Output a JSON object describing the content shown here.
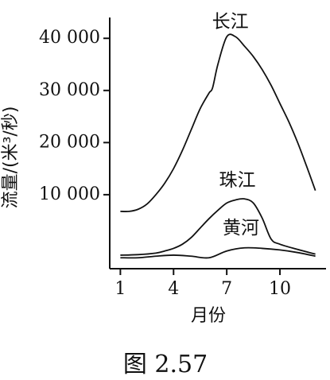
{
  "caption": "图 2.57",
  "chart_data": {
    "type": "line",
    "xlabel": "月份",
    "ylabel": "流量/(米³/秒)",
    "xlim": [
      0.4,
      12.6
    ],
    "ylim": [
      -4200,
      44000
    ],
    "x_ticks": [
      1,
      4,
      7,
      10
    ],
    "y_ticks": [
      10000,
      20000,
      30000,
      40000
    ],
    "y_tick_labels": [
      "10 000",
      "20 000",
      "30 000",
      "40 000"
    ],
    "grid": false,
    "series": [
      {
        "name": "长江",
        "x": [
          1,
          1.5,
          2,
          2.5,
          3,
          3.5,
          4,
          4.5,
          5,
          5.5,
          6,
          6.2,
          6.5,
          7,
          7.5,
          8,
          8.5,
          9,
          9.5,
          10,
          10.5,
          11,
          11.5,
          12
        ],
        "y": [
          6800,
          6800,
          7200,
          8200,
          10000,
          12200,
          15000,
          18500,
          22500,
          26500,
          29500,
          30500,
          35000,
          40300,
          40300,
          38500,
          36500,
          34000,
          31000,
          27500,
          24000,
          20000,
          15500,
          10800
        ]
      },
      {
        "name": "珠江",
        "x": [
          1,
          2,
          3,
          3.5,
          4,
          4.5,
          5,
          5.5,
          6,
          6.5,
          7,
          7.5,
          8,
          8.5,
          9,
          9.5,
          10,
          11,
          12
        ],
        "y": [
          -1600,
          -1500,
          -1200,
          -800,
          -300,
          500,
          1800,
          3600,
          5400,
          7000,
          8400,
          9000,
          9200,
          8400,
          5500,
          1500,
          500,
          -500,
          -1400
        ]
      },
      {
        "name": "黄河",
        "x": [
          1,
          2,
          3,
          4,
          5,
          6,
          7,
          8,
          9,
          10,
          11,
          12
        ],
        "y": [
          -2100,
          -2100,
          -1800,
          -1600,
          -1800,
          -2100,
          -800,
          -200,
          -300,
          -600,
          -1100,
          -1800
        ]
      }
    ]
  }
}
